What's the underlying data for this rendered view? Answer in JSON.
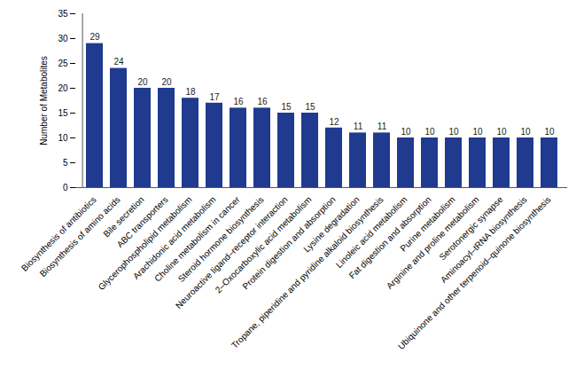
{
  "chart_data": {
    "type": "bar",
    "y_label": "Number of Metabolites",
    "categories": [
      "Biosynthesis of antibiotics",
      "Biosynthesis of amino acids",
      "Bile secretion",
      "ABC transporters",
      "Glycerophospholipid metabolism",
      "Arachidonic acid metabolism",
      "Choline metabolism in cancer",
      "Steroid hormone biosynthesis",
      "Neuroactive ligand–receptor interaction",
      "2–Oxocarboxylic acid metabolism",
      "Protein digestion and absorption",
      "Lysine degradation",
      "Tropane, piperidine and pyridine alkaloid biosynthesis",
      "Linoleic acid metabolism",
      "Fat digestion and absorption",
      "Purine metabolism",
      "Arginine and proline metabolism",
      "Serotonergic synapse",
      "Aminoacyl–tRNA biosynthesis",
      "Ubiquinone and other terpenoid–quinone biosynthesis"
    ],
    "values": [
      29,
      24,
      20,
      20,
      18,
      17,
      16,
      16,
      15,
      15,
      12,
      11,
      11,
      10,
      10,
      10,
      10,
      10,
      10,
      10
    ],
    "color": "#1f3a8f",
    "ylim": [
      0,
      35
    ],
    "yticks": [
      0,
      5,
      10,
      15,
      20,
      25,
      30,
      35
    ],
    "grid": false,
    "data_labels": true
  }
}
